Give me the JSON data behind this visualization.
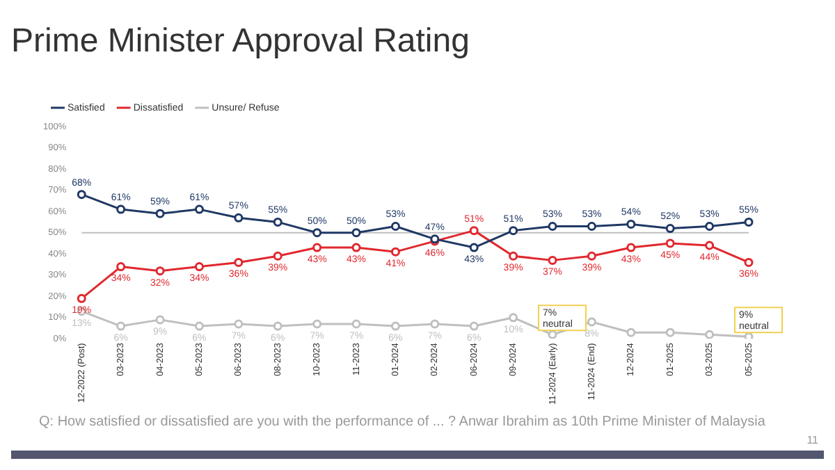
{
  "chart_data": {
    "type": "line",
    "title": "Prime Minister Approval Rating",
    "categories": [
      "12-2022 (Post)",
      "03-2023",
      "04-2023",
      "05-2023",
      "06-2023",
      "08-2023",
      "10-2023",
      "11-2023",
      "01-2024",
      "02-2024",
      "06-2024",
      "09-2024",
      "11-2024 (Early)",
      "11-2024 (End)",
      "12-2024",
      "01-2025",
      "03-2025",
      "05-2025"
    ],
    "series": [
      {
        "name": "Satisfied",
        "color": "#1f3864",
        "values": [
          68,
          61,
          59,
          61,
          57,
          55,
          50,
          50,
          53,
          47,
          43,
          51,
          53,
          53,
          54,
          52,
          53,
          55
        ],
        "value_labels": [
          "68%",
          "61%",
          "59%",
          "61%",
          "57%",
          "55%",
          "50%",
          "50%",
          "53%",
          "47%",
          "43%",
          "51%",
          "53%",
          "53%",
          "54%",
          "52%",
          "53%",
          "55%"
        ]
      },
      {
        "name": "Dissatisfied",
        "color": "#e0282e",
        "values": [
          19,
          34,
          32,
          34,
          36,
          39,
          43,
          43,
          41,
          46,
          51,
          39,
          37,
          39,
          43,
          45,
          44,
          36
        ],
        "value_labels": [
          "19%",
          "34%",
          "32%",
          "34%",
          "36%",
          "39%",
          "43%",
          "43%",
          "41%",
          "46%",
          "51%",
          "39%",
          "37%",
          "39%",
          "43%",
          "45%",
          "44%",
          "36%"
        ]
      },
      {
        "name": "Unsure/ Refuse",
        "color": "#bfbfbf",
        "values": [
          13,
          6,
          9,
          6,
          7,
          6,
          7,
          7,
          6,
          7,
          6,
          10,
          2,
          8,
          3,
          3,
          2,
          1
        ],
        "value_labels": [
          "13%",
          "6%",
          "9%",
          "6%",
          "7%",
          "6%",
          "7%",
          "7%",
          "6%",
          "7%",
          "6%",
          "10%",
          null,
          "8%",
          null,
          null,
          null,
          null
        ]
      }
    ],
    "ylim": [
      0,
      100
    ],
    "yticks": [
      {
        "value": 0,
        "label": "0%"
      },
      {
        "value": 10,
        "label": "10%"
      },
      {
        "value": 20,
        "label": "20%"
      },
      {
        "value": 30,
        "label": "30%"
      },
      {
        "value": 40,
        "label": "40%"
      },
      {
        "value": 50,
        "label": "50%"
      },
      {
        "value": 60,
        "label": "60%"
      },
      {
        "value": 70,
        "label": "70%"
      },
      {
        "value": 80,
        "label": "80%"
      },
      {
        "value": 90,
        "label": "90%"
      },
      {
        "value": 100,
        "label": "100%"
      }
    ],
    "ref_lines": [
      {
        "axis": "y",
        "value": 50,
        "color": "#bfbfbf"
      }
    ],
    "marker": "circle",
    "legend": "top left",
    "annotations": [
      {
        "text": "7% neutral",
        "x": "11-2024 (Early)",
        "y": 2
      },
      {
        "text": "9% neutral",
        "x": "05-2025",
        "y": 1
      },
      "Q: How satisfied or dissatisfied are you with the performance of ... ? Anwar Ibrahim as 10th Prime Minister of Malaysia",
      "11"
    ]
  }
}
